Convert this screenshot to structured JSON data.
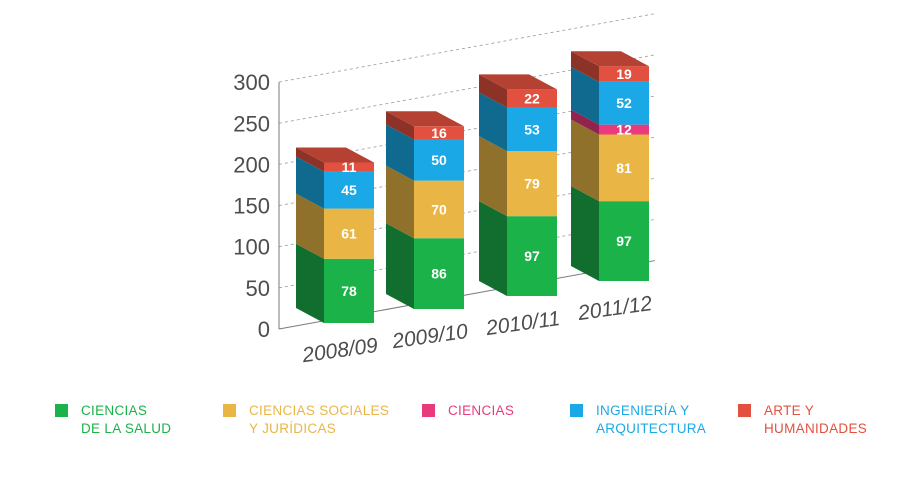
{
  "chart_data": {
    "type": "bar",
    "stacked": true,
    "title": "",
    "xlabel": "",
    "ylabel": "",
    "ylim": [
      0,
      300
    ],
    "yticks": [
      0,
      50,
      100,
      150,
      200,
      250,
      300
    ],
    "grid": true,
    "legend_position": "bottom",
    "categories": [
      "2008/09",
      "2009/10",
      "2010/11",
      "2011/12"
    ],
    "series": [
      {
        "name": "CIENCIAS\nDE LA SALUD",
        "color": "#1bb24a",
        "values": [
          78,
          86,
          97,
          97
        ]
      },
      {
        "name": "CIENCIAS SOCIALES\nY JURÍDICAS",
        "color": "#e9b645",
        "values": [
          61,
          70,
          79,
          81
        ]
      },
      {
        "name": "CIENCIAS",
        "color": "#e83a7c",
        "values": [
          0,
          0,
          0,
          12
        ]
      },
      {
        "name": "INGENIERÍA Y\nARQUITECTURA",
        "color": "#1aa9e6",
        "values": [
          45,
          50,
          53,
          52
        ]
      },
      {
        "name": "ARTE Y\nHUMANIDADES",
        "color": "#e2513f",
        "values": [
          11,
          16,
          22,
          19
        ]
      }
    ]
  }
}
